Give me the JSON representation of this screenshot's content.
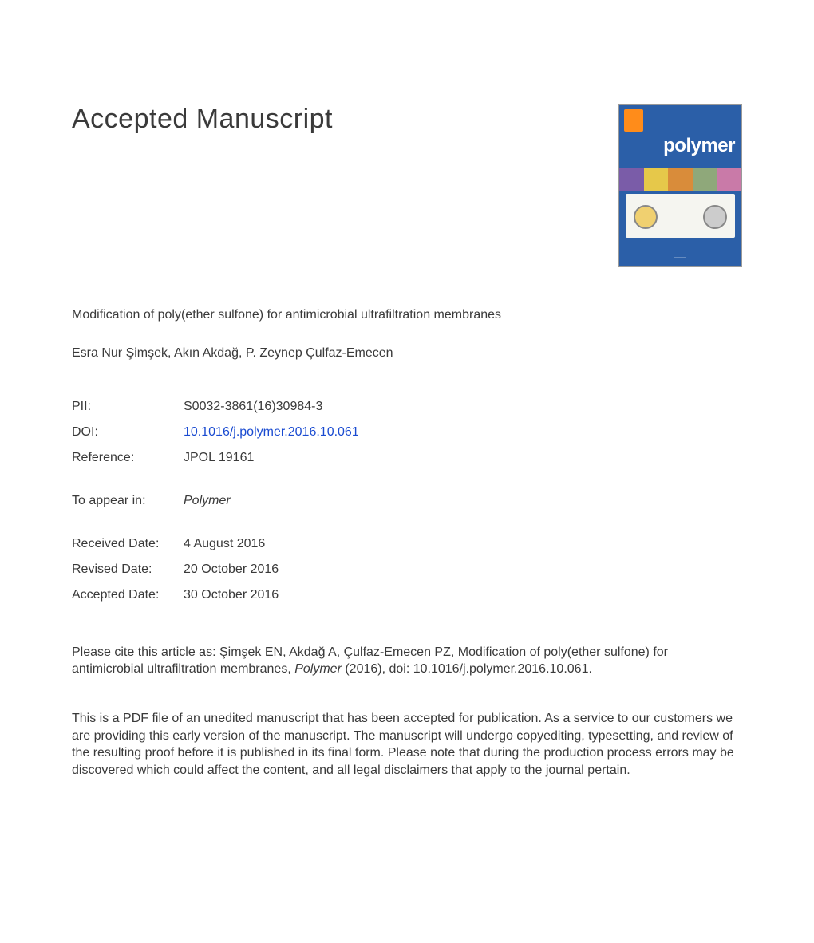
{
  "heading": "Accepted Manuscript",
  "journal_cover": {
    "publisher_badge_color": "#ff8c1a",
    "background_color": "#2b5fa8",
    "journal_name": "polymer",
    "strip_colors": [
      "#7a5ca8",
      "#e6c84a",
      "#d98c3a",
      "#8fa87a",
      "#c97aa8"
    ]
  },
  "article_title": "Modification of poly(ether sulfone) for antimicrobial ultrafiltration membranes",
  "authors": "Esra Nur Şimşek, Akın Akdağ, P. Zeynep Çulfaz-Emecen",
  "meta": {
    "pii_label": "PII:",
    "pii_value": "S0032-3861(16)30984-3",
    "doi_label": "DOI:",
    "doi_value": "10.1016/j.polymer.2016.10.061",
    "reference_label": "Reference:",
    "reference_value": "JPOL 19161",
    "appear_label": "To appear in:",
    "appear_value": "Polymer"
  },
  "dates": {
    "received_label": "Received Date:",
    "received_value": "4 August 2016",
    "revised_label": "Revised Date:",
    "revised_value": "20 October 2016",
    "accepted_label": "Accepted Date:",
    "accepted_value": "30 October 2016"
  },
  "citation": {
    "prefix": "Please cite this article as: Şimşek EN, Akdağ A, Çulfaz-Emecen PZ, Modification of poly(ether sulfone) for antimicrobial ultrafiltration membranes, ",
    "journal": "Polymer",
    "suffix": " (2016), doi: 10.1016/j.polymer.2016.10.061."
  },
  "disclaimer": "This is a PDF file of an unedited manuscript that has been accepted for publication. As a service to our customers we are providing this early version of the manuscript. The manuscript will undergo copyediting, typesetting, and review of the resulting proof before it is published in its final form. Please note that during the production process errors may be discovered which could affect the content, and all legal disclaimers that apply to the journal pertain."
}
